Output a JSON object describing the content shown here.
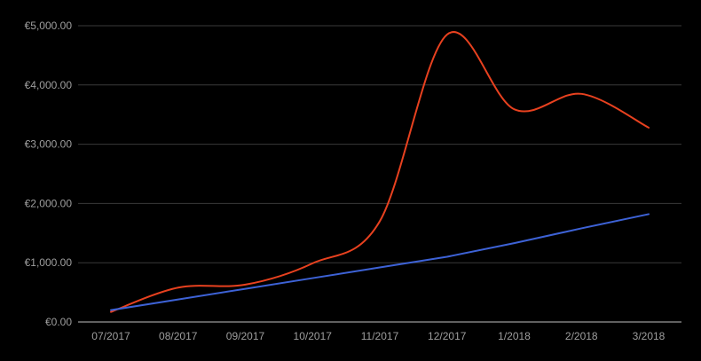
{
  "chart_data": {
    "type": "line",
    "title": "",
    "xlabel": "",
    "ylabel": "",
    "categories": [
      "07/2017",
      "08/2017",
      "09/2017",
      "10/2017",
      "11/2017",
      "12/2017",
      "1/2018",
      "2/2018",
      "3/2018"
    ],
    "ylim": [
      0,
      5000
    ],
    "yticks": [
      0,
      1000,
      2000,
      3000,
      4000,
      5000
    ],
    "ytick_labels": [
      "€0.00",
      "€1,000.00",
      "€2,000.00",
      "€3,000.00",
      "€4,000.00",
      "€5,000.00"
    ],
    "grid": true,
    "legend": "none",
    "series": [
      {
        "color": "#e8411f",
        "smooth": true,
        "values": [
          170,
          580,
          630,
          990,
          1700,
          4850,
          3590,
          3850,
          3280
        ]
      },
      {
        "color": "#3d62d6",
        "smooth": false,
        "values": [
          200,
          380,
          560,
          740,
          920,
          1100,
          1330,
          1580,
          1820
        ]
      }
    ]
  }
}
